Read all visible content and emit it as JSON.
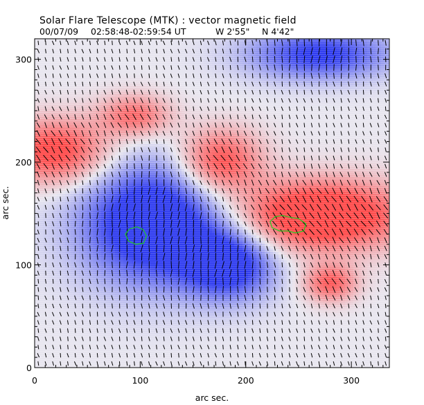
{
  "chart_data": {
    "type": "heatmap",
    "title": "Solar Flare Telescope (MTK) : vector magnetic field",
    "subtitle": {
      "date": "00/07/09",
      "time_range": "02:58:48-02:59:54 UT",
      "longitude": "W 2'55\"",
      "latitude": "N 4'42\""
    },
    "xlabel": "arc sec.",
    "ylabel": "arc sec.",
    "xlim": [
      0,
      336
    ],
    "ylim": [
      0,
      320
    ],
    "xticks": [
      0,
      100,
      200,
      300
    ],
    "yticks": [
      0,
      100,
      200,
      300
    ],
    "colors": {
      "positive": "#ff4a4a",
      "negative": "#2f3cf0",
      "background": "#e8e6ef",
      "vector": "#000000",
      "contour": "#22cc22",
      "frame": "#000000"
    },
    "regions": [
      {
        "name": "positive-blob-west",
        "polarity": 1,
        "x": 20,
        "y": 210,
        "rx": 45,
        "ry": 28,
        "strength": 0.75
      },
      {
        "name": "positive-blob-top",
        "polarity": 1,
        "x": 95,
        "y": 245,
        "rx": 30,
        "ry": 18,
        "strength": 0.55
      },
      {
        "name": "positive-blob-mid",
        "polarity": 1,
        "x": 175,
        "y": 200,
        "rx": 35,
        "ry": 28,
        "strength": 0.75
      },
      {
        "name": "positive-main",
        "polarity": 1,
        "x": 270,
        "y": 148,
        "rx": 72,
        "ry": 30,
        "strength": 1.0
      },
      {
        "name": "positive-tail",
        "polarity": 1,
        "x": 280,
        "y": 82,
        "rx": 22,
        "ry": 16,
        "strength": 0.6
      },
      {
        "name": "negative-main",
        "polarity": -1,
        "x": 115,
        "y": 140,
        "rx": 62,
        "ry": 52,
        "strength": 1.0
      },
      {
        "name": "negative-extension",
        "polarity": -1,
        "x": 185,
        "y": 100,
        "rx": 38,
        "ry": 30,
        "strength": 0.75
      },
      {
        "name": "negative-top",
        "polarity": -1,
        "x": 270,
        "y": 305,
        "rx": 60,
        "ry": 22,
        "strength": 0.7
      }
    ],
    "contours": [
      {
        "name": "umbra-negative",
        "points": [
          [
            86,
            130
          ],
          [
            90,
            135
          ],
          [
            97,
            137
          ],
          [
            103,
            134
          ],
          [
            106,
            128
          ],
          [
            103,
            121
          ],
          [
            96,
            120
          ],
          [
            89,
            123
          ]
        ]
      },
      {
        "name": "umbra-positive",
        "points": [
          [
            223,
            142
          ],
          [
            228,
            147
          ],
          [
            235,
            148
          ],
          [
            243,
            146
          ],
          [
            250,
            145
          ],
          [
            257,
            140
          ],
          [
            255,
            133
          ],
          [
            247,
            131
          ],
          [
            240,
            133
          ],
          [
            232,
            133
          ],
          [
            225,
            136
          ]
        ]
      }
    ],
    "vector_grid": {
      "dx": 7,
      "dy": 8
    }
  }
}
